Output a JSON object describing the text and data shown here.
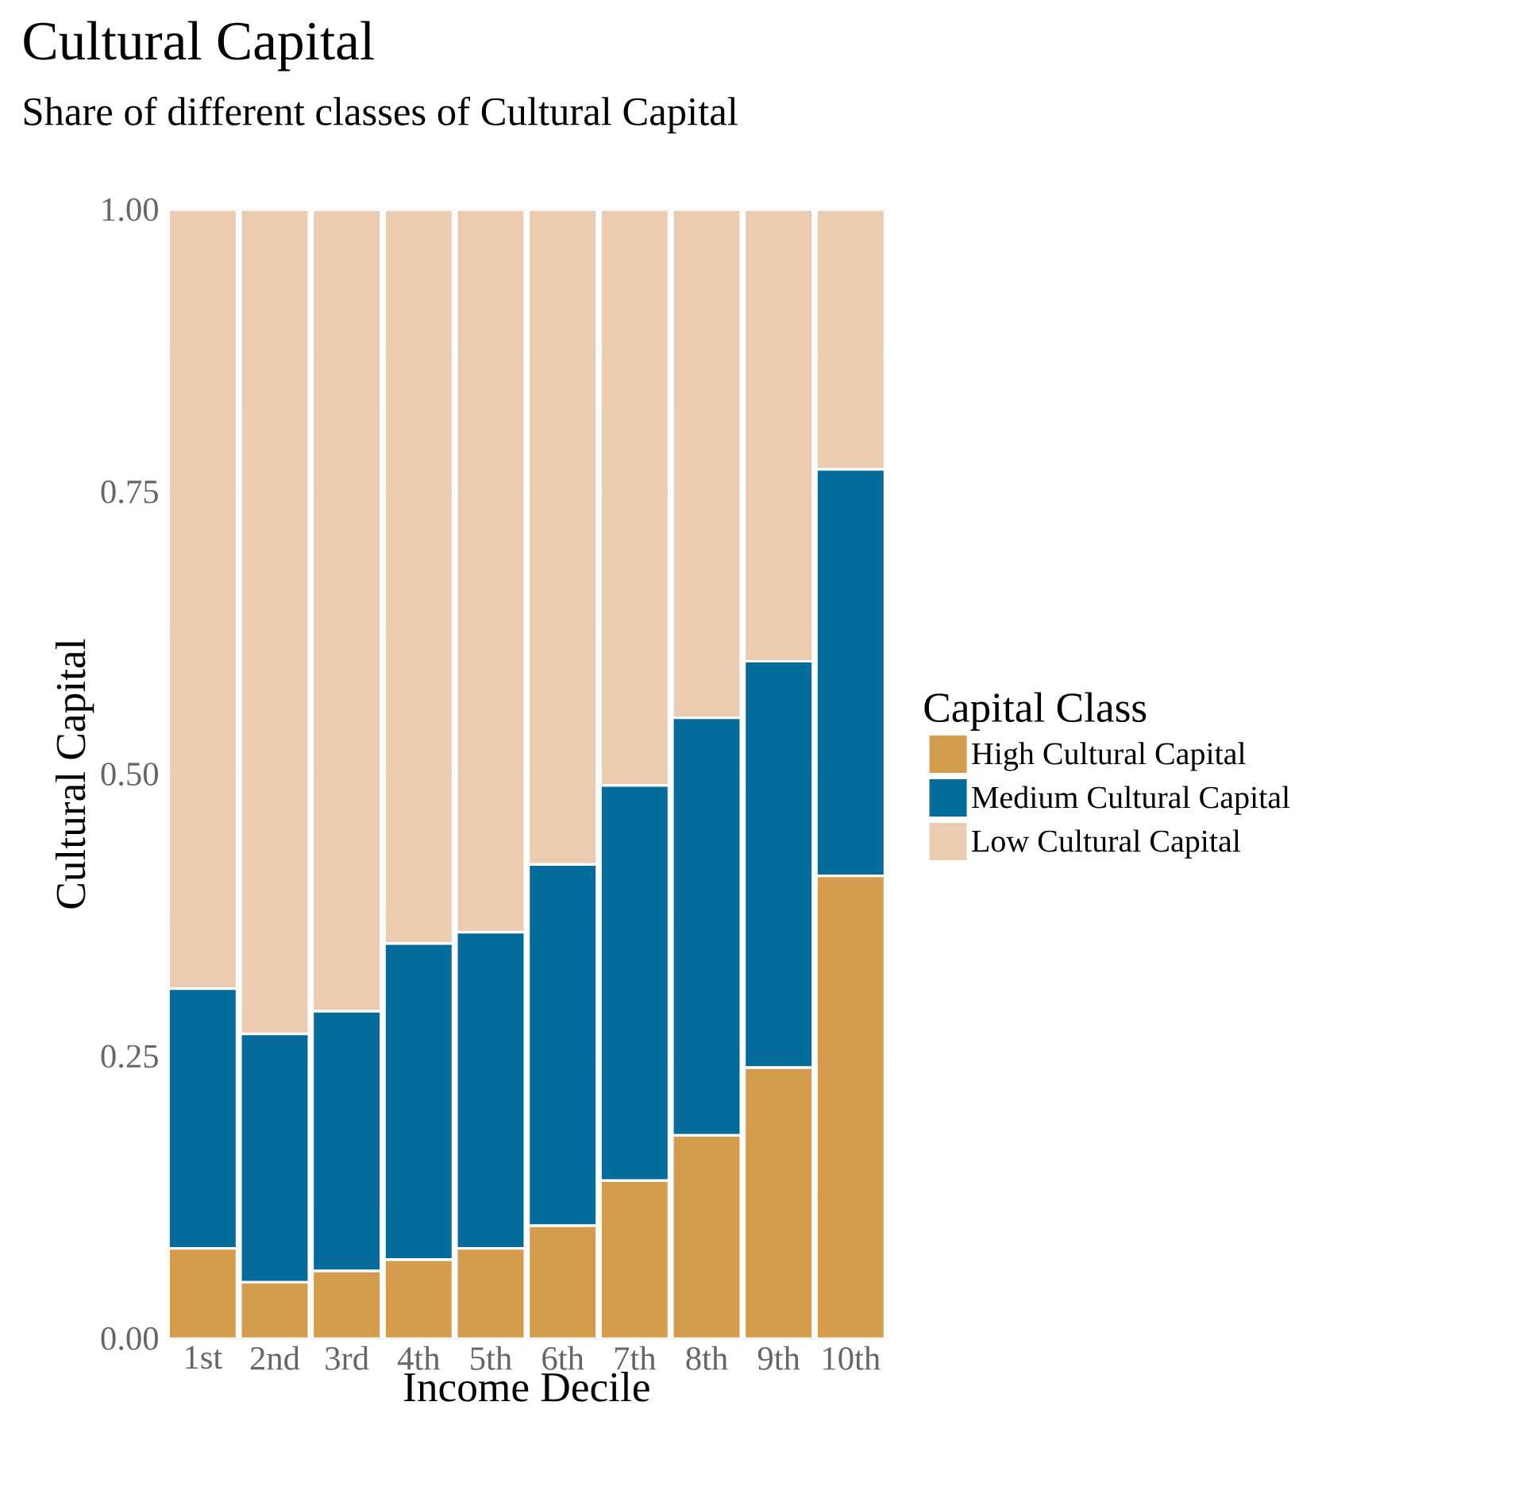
{
  "chart_data": {
    "type": "bar",
    "title": "Cultural Capital",
    "subtitle": "Share of different classes of Cultural Capital",
    "xlabel": "Income Decile",
    "ylabel": "Cultural Capital",
    "legend_title": "Capital Class",
    "categories": [
      "1st",
      "2nd",
      "3rd",
      "4th",
      "5th",
      "6th",
      "7th",
      "8th",
      "9th",
      "10th"
    ],
    "series": [
      {
        "name": "High Cultural Capital",
        "color": "#d49d4e",
        "values": [
          0.08,
          0.05,
          0.06,
          0.07,
          0.08,
          0.1,
          0.14,
          0.18,
          0.24,
          0.41
        ]
      },
      {
        "name": "Medium Cultural Capital",
        "color": "#036c9a",
        "values": [
          0.23,
          0.22,
          0.23,
          0.28,
          0.28,
          0.32,
          0.35,
          0.37,
          0.36,
          0.36
        ]
      },
      {
        "name": "Low Cultural Capital",
        "color": "#ecccb0",
        "values": [
          0.69,
          0.73,
          0.71,
          0.65,
          0.64,
          0.58,
          0.51,
          0.45,
          0.4,
          0.23
        ]
      }
    ],
    "stacked": true,
    "ylim": [
      0,
      1
    ],
    "yticks": [
      {
        "value": 0,
        "label": "0.00"
      },
      {
        "value": 0.25,
        "label": "0.25"
      },
      {
        "value": 0.5,
        "label": "0.50"
      },
      {
        "value": 0.75,
        "label": "0.75"
      },
      {
        "value": 1,
        "label": "1.00"
      }
    ],
    "grid": true,
    "legend": "right"
  }
}
